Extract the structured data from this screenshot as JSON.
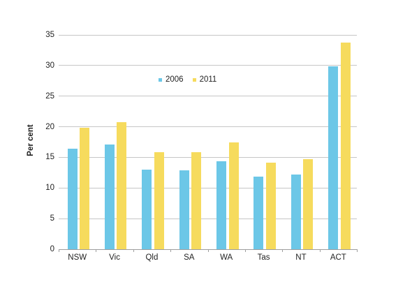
{
  "chart_data": {
    "type": "bar",
    "title": "",
    "xlabel": "",
    "ylabel": "Per cent",
    "categories": [
      "NSW",
      "Vic",
      "Qld",
      "SA",
      "WA",
      "Tas",
      "NT",
      "ACT"
    ],
    "series": [
      {
        "name": "2006",
        "color": "#6cc7e7",
        "values": [
          16.4,
          17.1,
          13.0,
          12.9,
          14.4,
          11.9,
          12.2,
          29.9
        ]
      },
      {
        "name": "2011",
        "color": "#f6db5d",
        "values": [
          19.8,
          20.8,
          15.8,
          15.9,
          17.5,
          14.1,
          14.7,
          33.8
        ]
      }
    ],
    "ylim": [
      0,
      35
    ],
    "yticks": [
      0,
      5,
      10,
      15,
      20,
      25,
      30,
      35
    ],
    "grid": "horizontal",
    "legend_position": "inside-upper-left-of-center"
  },
  "colors": {
    "gridline": "#c6c6c6",
    "axis": "#9e9e9e",
    "text": "#1f1f1f",
    "background": "#ffffff"
  }
}
